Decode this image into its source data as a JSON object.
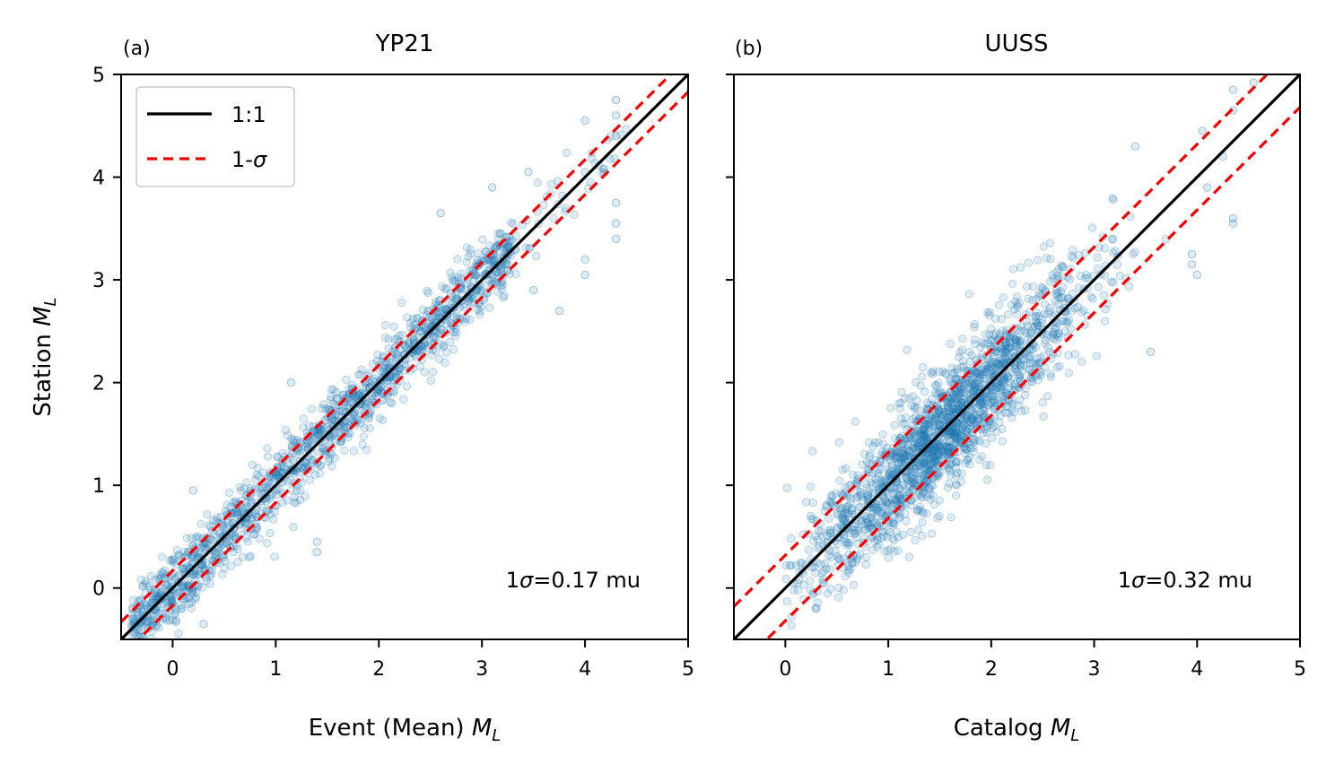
{
  "colors": {
    "points": "#1f77b4",
    "one_to_one": "#000000",
    "sigma": "#ff0000"
  },
  "chart_data": [
    {
      "type": "scatter",
      "panel_label": "(a)",
      "title": "YP21",
      "xlabel_text": "Event (Mean) ",
      "xlabel_math": "M",
      "xlabel_sub": "L",
      "ylabel_text": "Station ",
      "ylabel_math": "M",
      "ylabel_sub": "L",
      "xlim": [
        -0.5,
        5
      ],
      "ylim": [
        -0.5,
        5
      ],
      "xticks": [
        0,
        1,
        2,
        3,
        4,
        5
      ],
      "yticks": [
        0,
        1,
        2,
        3,
        4,
        5
      ],
      "xtick_labels": [
        "0",
        "1",
        "2",
        "3",
        "4",
        "5"
      ],
      "ytick_labels": [
        "0",
        "1",
        "2",
        "3",
        "4",
        "5"
      ],
      "annotation_prefix": "1",
      "annotation_sigma": "σ",
      "annotation_suffix": "=0.17 mu",
      "sigma": 0.17,
      "legend": {
        "position": "upper-left",
        "entries": [
          "1:1",
          "1-",
          "σ"
        ]
      },
      "point_cloud": {
        "x_range": [
          -0.4,
          4.4
        ],
        "scatter_sd": 0.17,
        "mode": "dense"
      },
      "outliers": [
        {
          "x": 4.3,
          "y": 4.75
        },
        {
          "x": 4.3,
          "y": 4.6
        },
        {
          "x": 4.3,
          "y": 4.4
        },
        {
          "x": 4.0,
          "y": 4.55
        },
        {
          "x": 4.0,
          "y": 4.05
        },
        {
          "x": 4.3,
          "y": 3.75
        },
        {
          "x": 4.3,
          "y": 3.55
        },
        {
          "x": 4.3,
          "y": 3.4
        },
        {
          "x": 4.0,
          "y": 3.2
        },
        {
          "x": 4.0,
          "y": 3.05
        },
        {
          "x": 3.75,
          "y": 2.7
        },
        {
          "x": 3.5,
          "y": 2.9
        },
        {
          "x": 3.1,
          "y": 3.9
        },
        {
          "x": 2.6,
          "y": 3.65
        },
        {
          "x": 1.4,
          "y": 0.45
        },
        {
          "x": 1.4,
          "y": 0.35
        },
        {
          "x": 0.3,
          "y": -0.35
        },
        {
          "x": 1.15,
          "y": 2.0
        },
        {
          "x": 0.2,
          "y": 0.95
        },
        {
          "x": 3.45,
          "y": 4.05
        }
      ]
    },
    {
      "type": "scatter",
      "panel_label": "(b)",
      "title": "UUSS",
      "xlabel_text": "Catalog ",
      "xlabel_math": "M",
      "xlabel_sub": "L",
      "xlim": [
        -0.5,
        5
      ],
      "ylim": [
        -0.5,
        5
      ],
      "xticks": [
        0,
        1,
        2,
        3,
        4,
        5
      ],
      "xtick_labels": [
        "0",
        "1",
        "2",
        "3",
        "4",
        "5"
      ],
      "annotation_prefix": "1",
      "annotation_sigma": "σ",
      "annotation_suffix": "=0.32 mu",
      "sigma": 0.32,
      "point_cloud": {
        "x_range": [
          0.0,
          3.8
        ],
        "scatter_sd": 0.3,
        "mode": "dense"
      },
      "outliers": [
        {
          "x": 4.35,
          "y": 4.85
        },
        {
          "x": 4.55,
          "y": 4.92
        },
        {
          "x": 4.35,
          "y": 4.65
        },
        {
          "x": 4.35,
          "y": 3.6
        },
        {
          "x": 4.35,
          "y": 3.55
        },
        {
          "x": 3.95,
          "y": 3.25
        },
        {
          "x": 3.95,
          "y": 3.15
        },
        {
          "x": 4.0,
          "y": 3.05
        },
        {
          "x": 3.4,
          "y": 4.3
        },
        {
          "x": 4.1,
          "y": 3.9
        },
        {
          "x": 4.25,
          "y": 4.2
        },
        {
          "x": 0.3,
          "y": -0.2
        },
        {
          "x": 4.05,
          "y": 4.45
        },
        {
          "x": 3.55,
          "y": 2.3
        }
      ]
    }
  ]
}
